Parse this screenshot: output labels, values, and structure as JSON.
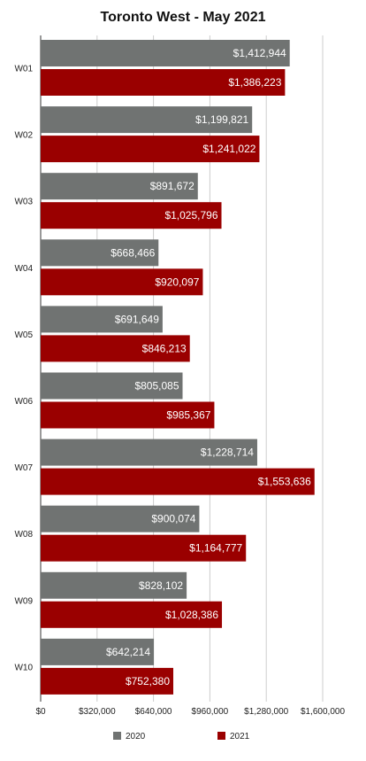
{
  "chart_data": {
    "type": "bar",
    "orientation": "horizontal",
    "title": "Toronto West - May 2021",
    "categories": [
      "W01",
      "W02",
      "W03",
      "W04",
      "W05",
      "W06",
      "W07",
      "W08",
      "W09",
      "W10"
    ],
    "series": [
      {
        "name": "2020",
        "color": "#707372",
        "values": [
          1412944,
          1199821,
          891672,
          668466,
          691649,
          805085,
          1228714,
          900074,
          828102,
          642214
        ],
        "labels": [
          "$1,412,944",
          "$1,199,821",
          "$891,672",
          "$668,466",
          "$691,649",
          "$805,085",
          "$1,228,714",
          "$900,074",
          "$828,102",
          "$642,214"
        ]
      },
      {
        "name": "2021",
        "color": "#9a0000",
        "values": [
          1386223,
          1241022,
          1025796,
          920097,
          846213,
          985367,
          1553636,
          1164777,
          1028386,
          752380
        ],
        "labels": [
          "$1,386,223",
          "$1,241,022",
          "$1,025,796",
          "$920,097",
          "$846,213",
          "$985,367",
          "$1,553,636",
          "$1,164,777",
          "$1,028,386",
          "$752,380"
        ]
      }
    ],
    "xlim": [
      0,
      1600000
    ],
    "xticks": [
      0,
      320000,
      640000,
      960000,
      1280000,
      1600000
    ],
    "xtick_labels": [
      "$0",
      "$320,000",
      "$640,000",
      "$960,000",
      "$1,280,000",
      "$1,600,000"
    ],
    "grid": true,
    "legend_position": "bottom"
  }
}
